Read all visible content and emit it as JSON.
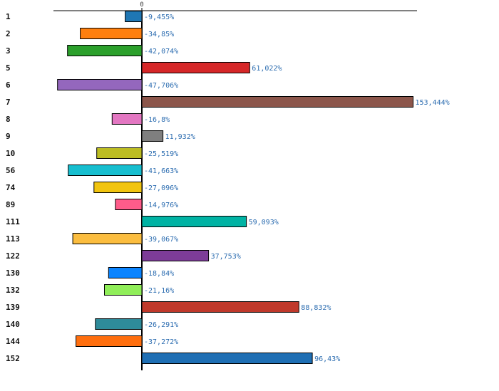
{
  "chart_data": {
    "type": "bar",
    "orientation": "horizontal",
    "title": "",
    "xlabel": "",
    "ylabel": "",
    "xlim": [
      -60,
      160
    ],
    "zero_tick_label": "0",
    "grid": false,
    "legend": "none",
    "categories": [
      "1",
      "2",
      "3",
      "5",
      "6",
      "7",
      "8",
      "9",
      "10",
      "56",
      "74",
      "89",
      "111",
      "113",
      "122",
      "130",
      "132",
      "139",
      "140",
      "144",
      "152"
    ],
    "values": [
      -9.455,
      -34.85,
      -42.074,
      61.022,
      -47.706,
      153.444,
      -16.8,
      11.932,
      -25.519,
      -41.663,
      -27.096,
      -14.976,
      59.093,
      -39.067,
      37.753,
      -18.84,
      -21.16,
      88.832,
      -26.291,
      -37.272,
      96.43
    ],
    "value_labels": [
      "-9,455%",
      "-34,85%",
      "-42,074%",
      "61,022%",
      "-47,706%",
      "153,444%",
      "-16,8%",
      "11,932%",
      "-25,519%",
      "-41,663%",
      "-27,096%",
      "-14,976%",
      "59,093%",
      "-39,067%",
      "37,753%",
      "-18,84%",
      "-21,16%",
      "88,832%",
      "-26,291%",
      "-37,272%",
      "96,43%"
    ],
    "colors": [
      "#1f77b4",
      "#ff7f0e",
      "#2ca02c",
      "#d62728",
      "#9467bd",
      "#8c564b",
      "#e377c2",
      "#7f7f7f",
      "#bcbd22",
      "#17becf",
      "#f1c40f",
      "#ff5c8a",
      "#00b3a4",
      "#fbbd3f",
      "#7d3c98",
      "#0a84ff",
      "#90ee59",
      "#c0392b",
      "#2e8b9a",
      "#ff6f0f",
      "#1f6fb4"
    ]
  }
}
